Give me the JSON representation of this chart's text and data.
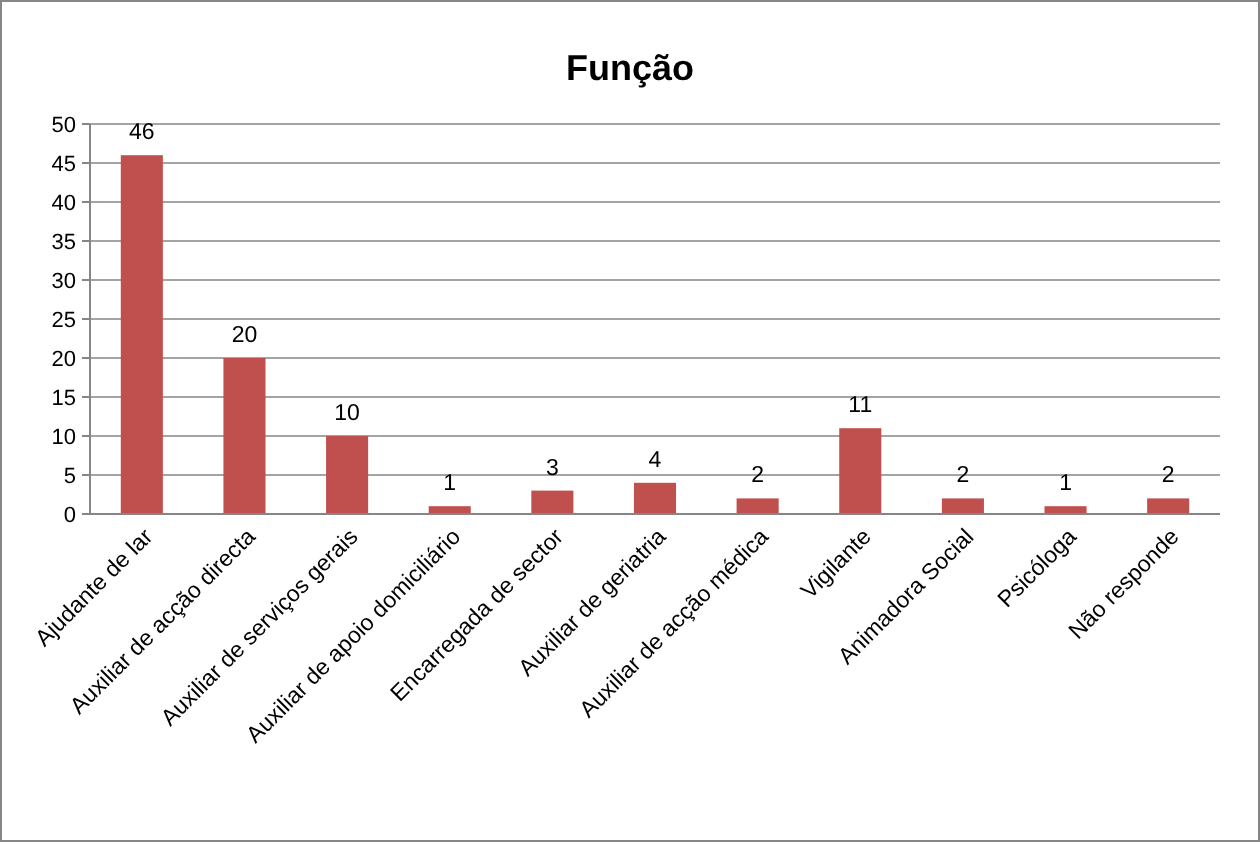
{
  "chart_data": {
    "type": "bar",
    "title": "Função",
    "categories": [
      "Ajudante de lar",
      "Auxiliar de acção directa",
      "Auxiliar de serviços gerais",
      "Auxiliar de apoio domiciliário",
      "Encarregada de sector",
      "Auxiliar de geriatria",
      "Auxiliar de acção médica",
      "Vigilante",
      "Animadora Social",
      "Psicóloga",
      "Não responde"
    ],
    "values": [
      46,
      20,
      10,
      1,
      3,
      4,
      2,
      11,
      2,
      1,
      2
    ],
    "color": "#c0504d",
    "ylim": [
      0,
      50
    ],
    "yticks": [
      0,
      5,
      10,
      15,
      20,
      25,
      30,
      35,
      40,
      45,
      50
    ],
    "grid": "y",
    "data_labels": true
  }
}
